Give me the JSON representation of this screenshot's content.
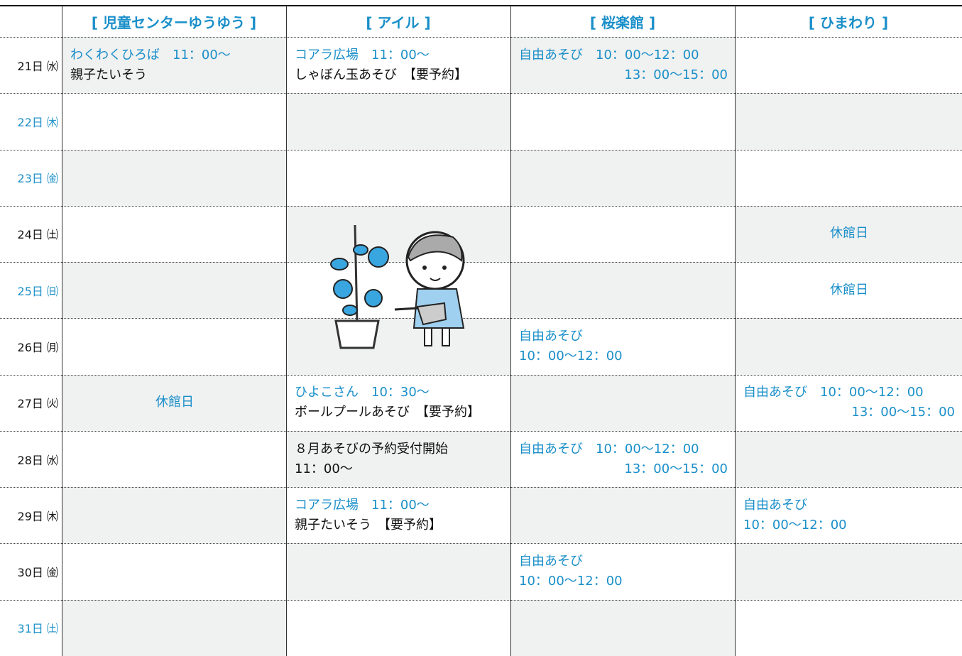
{
  "header": {
    "columns": [
      "[ 児童センターゆうゆう ]",
      "[ アイル ]",
      "[ 桜楽館 ]",
      "[ ひまわり ]"
    ]
  },
  "rows": [
    {
      "date": "21日 ㈬",
      "date_color": "#111111",
      "cells": [
        [
          {
            "text": "わくわくひろば　11：00～",
            "color": "#1a8fc9"
          },
          {
            "text": "親子たいそう",
            "color": "#111111"
          }
        ],
        [
          {
            "text": "コアラ広場　11：00～",
            "color": "#1a8fc9"
          },
          {
            "text": "しゃぼん玉あそび　【要予約】",
            "color": "#111111"
          }
        ],
        [
          {
            "text": "自由あそび　10：00～12：00",
            "color": "#1a8fc9"
          },
          {
            "text": "13：00～15：00",
            "color": "#1a8fc9",
            "align": "right"
          }
        ],
        []
      ]
    },
    {
      "date": "22日 ㈭",
      "date_color": "#1a8fc9",
      "cells": [
        [],
        [],
        [],
        []
      ]
    },
    {
      "date": "23日 ㈮",
      "date_color": "#1a8fc9",
      "cells": [
        [],
        [],
        [],
        []
      ]
    },
    {
      "date": "24日 ㈯",
      "date_color": "#111111",
      "cells": [
        [],
        [],
        [],
        [
          {
            "text": "休館日",
            "color": "#1a8fc9",
            "align": "center"
          }
        ]
      ]
    },
    {
      "date": "25日 ㈰",
      "date_color": "#1a8fc9",
      "cells": [
        [],
        [],
        [],
        [
          {
            "text": "休館日",
            "color": "#1a8fc9",
            "align": "center"
          }
        ]
      ]
    },
    {
      "date": "26日 ㈪",
      "date_color": "#111111",
      "cells": [
        [],
        [],
        [
          {
            "text": "自由あそび",
            "color": "#1a8fc9"
          },
          {
            "text": "10：00～12：00",
            "color": "#1a8fc9"
          }
        ],
        []
      ]
    },
    {
      "date": "27日 ㈫",
      "date_color": "#111111",
      "cells": [
        [
          {
            "text": "休館日",
            "color": "#1a8fc9",
            "align": "center"
          }
        ],
        [
          {
            "text": "ひよこさん　10：30～",
            "color": "#1a8fc9"
          },
          {
            "text": "ボールプールあそび　【要予約】",
            "color": "#111111"
          }
        ],
        [],
        [
          {
            "text": "自由あそび　10：00～12：00",
            "color": "#1a8fc9"
          },
          {
            "text": "13：00～15：00",
            "color": "#1a8fc9",
            "align": "right"
          }
        ]
      ]
    },
    {
      "date": "28日 ㈬",
      "date_color": "#111111",
      "cells": [
        [],
        [
          {
            "text": "８月あそびの予約受付開始",
            "color": "#111111"
          },
          {
            "text": "11：00～",
            "color": "#111111"
          }
        ],
        [
          {
            "text": "自由あそび　10：00～12：00",
            "color": "#1a8fc9"
          },
          {
            "text": "13：00～15：00",
            "color": "#1a8fc9",
            "align": "right"
          }
        ],
        []
      ]
    },
    {
      "date": "29日 ㈭",
      "date_color": "#111111",
      "cells": [
        [],
        [
          {
            "text": "コアラ広場　11：00～",
            "color": "#1a8fc9"
          },
          {
            "text": "親子たいそう　【要予約】",
            "color": "#111111"
          }
        ],
        [],
        [
          {
            "text": "自由あそび",
            "color": "#1a8fc9"
          },
          {
            "text": "10：00～12：00",
            "color": "#1a8fc9"
          }
        ]
      ]
    },
    {
      "date": "30日 ㈮",
      "date_color": "#111111",
      "cells": [
        [],
        [],
        [
          {
            "text": "自由あそび",
            "color": "#1a8fc9"
          },
          {
            "text": "10：00～12：00",
            "color": "#1a8fc9"
          }
        ],
        []
      ]
    },
    {
      "date": "31日 ㈯",
      "date_color": "#1a8fc9",
      "cells": [
        [],
        [],
        [],
        []
      ]
    }
  ]
}
